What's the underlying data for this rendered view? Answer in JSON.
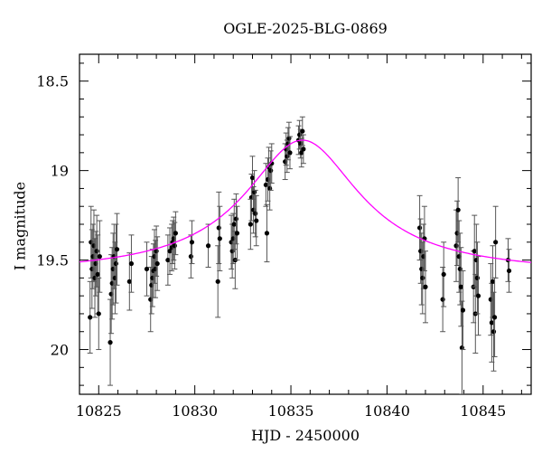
{
  "chart_data": {
    "type": "scatter",
    "title": "OGLE-2025-BLG-0869",
    "xlabel": "HJD - 2450000",
    "ylabel": "I magnitude",
    "xlim": [
      10824,
      10847.5
    ],
    "ylim": [
      20.25,
      18.35
    ],
    "y_inverted": true,
    "xticks": [
      10825,
      10830,
      10835,
      10840,
      10845
    ],
    "yticks": [
      18.5,
      19,
      19.5,
      20
    ],
    "ytick_labels": [
      "18.5",
      "19",
      "19.5",
      "20"
    ],
    "grid": false,
    "colors": {
      "points": "#000000",
      "errorbars": "#555555",
      "model": "#ff00ff"
    },
    "model_curve": {
      "label": "",
      "t0": 10835.6,
      "baseline_mag": 19.58,
      "peak_mag": 18.83,
      "timescale_days": 3.1
    },
    "series": [
      {
        "points": [
          {
            "x": 10824.55,
            "y": 19.82,
            "err": 0.2
          },
          {
            "x": 10824.6,
            "y": 19.4,
            "err": 0.2
          },
          {
            "x": 10824.65,
            "y": 19.55,
            "err": 0.22
          },
          {
            "x": 10824.7,
            "y": 19.48,
            "err": 0.18
          },
          {
            "x": 10824.75,
            "y": 19.42,
            "err": 0.2
          },
          {
            "x": 10824.8,
            "y": 19.6,
            "err": 0.22
          },
          {
            "x": 10824.85,
            "y": 19.52,
            "err": 0.18
          },
          {
            "x": 10824.9,
            "y": 19.45,
            "err": 0.2
          },
          {
            "x": 10824.95,
            "y": 19.58,
            "err": 0.22
          },
          {
            "x": 10825.0,
            "y": 19.8,
            "err": 0.2
          },
          {
            "x": 10825.05,
            "y": 19.48,
            "err": 0.2
          },
          {
            "x": 10825.6,
            "y": 19.96,
            "err": 0.24
          },
          {
            "x": 10825.65,
            "y": 19.69,
            "err": 0.22
          },
          {
            "x": 10825.7,
            "y": 19.63,
            "err": 0.2
          },
          {
            "x": 10825.75,
            "y": 19.55,
            "err": 0.2
          },
          {
            "x": 10825.8,
            "y": 19.48,
            "err": 0.18
          },
          {
            "x": 10825.85,
            "y": 19.6,
            "err": 0.2
          },
          {
            "x": 10825.9,
            "y": 19.52,
            "err": 0.22
          },
          {
            "x": 10825.95,
            "y": 19.44,
            "err": 0.2
          },
          {
            "x": 10826.6,
            "y": 19.62,
            "err": 0.16
          },
          {
            "x": 10826.7,
            "y": 19.52,
            "err": 0.16
          },
          {
            "x": 10827.5,
            "y": 19.55,
            "err": 0.15
          },
          {
            "x": 10827.7,
            "y": 19.72,
            "err": 0.18
          },
          {
            "x": 10827.75,
            "y": 19.64,
            "err": 0.16
          },
          {
            "x": 10827.8,
            "y": 19.6,
            "err": 0.16
          },
          {
            "x": 10827.85,
            "y": 19.56,
            "err": 0.15
          },
          {
            "x": 10827.9,
            "y": 19.48,
            "err": 0.15
          },
          {
            "x": 10827.95,
            "y": 19.55,
            "err": 0.16
          },
          {
            "x": 10828.0,
            "y": 19.45,
            "err": 0.14
          },
          {
            "x": 10828.05,
            "y": 19.52,
            "err": 0.15
          },
          {
            "x": 10828.6,
            "y": 19.5,
            "err": 0.14
          },
          {
            "x": 10828.7,
            "y": 19.45,
            "err": 0.13
          },
          {
            "x": 10828.8,
            "y": 19.43,
            "err": 0.13
          },
          {
            "x": 10828.85,
            "y": 19.4,
            "err": 0.12
          },
          {
            "x": 10828.9,
            "y": 19.38,
            "err": 0.12
          },
          {
            "x": 10828.95,
            "y": 19.42,
            "err": 0.13
          },
          {
            "x": 10829.0,
            "y": 19.35,
            "err": 0.12
          },
          {
            "x": 10829.8,
            "y": 19.48,
            "err": 0.12
          },
          {
            "x": 10829.85,
            "y": 19.4,
            "err": 0.12
          },
          {
            "x": 10830.7,
            "y": 19.42,
            "err": 0.12
          },
          {
            "x": 10831.2,
            "y": 19.62,
            "err": 0.2
          },
          {
            "x": 10831.25,
            "y": 19.32,
            "err": 0.2
          },
          {
            "x": 10831.3,
            "y": 19.38,
            "err": 0.18
          },
          {
            "x": 10831.9,
            "y": 19.4,
            "err": 0.15
          },
          {
            "x": 10831.95,
            "y": 19.45,
            "err": 0.15
          },
          {
            "x": 10832.0,
            "y": 19.38,
            "err": 0.14
          },
          {
            "x": 10832.05,
            "y": 19.3,
            "err": 0.14
          },
          {
            "x": 10832.1,
            "y": 19.5,
            "err": 0.16
          },
          {
            "x": 10832.15,
            "y": 19.27,
            "err": 0.14
          },
          {
            "x": 10832.2,
            "y": 19.35,
            "err": 0.15
          },
          {
            "x": 10832.9,
            "y": 19.3,
            "err": 0.14
          },
          {
            "x": 10832.95,
            "y": 19.15,
            "err": 0.13
          },
          {
            "x": 10833.0,
            "y": 19.04,
            "err": 0.12
          },
          {
            "x": 10833.05,
            "y": 19.22,
            "err": 0.13
          },
          {
            "x": 10833.1,
            "y": 19.12,
            "err": 0.12
          },
          {
            "x": 10833.15,
            "y": 19.24,
            "err": 0.13
          },
          {
            "x": 10833.2,
            "y": 19.28,
            "err": 0.14
          },
          {
            "x": 10833.7,
            "y": 19.08,
            "err": 0.12
          },
          {
            "x": 10833.75,
            "y": 19.35,
            "err": 0.16
          },
          {
            "x": 10833.8,
            "y": 19.05,
            "err": 0.12
          },
          {
            "x": 10833.85,
            "y": 18.98,
            "err": 0.11
          },
          {
            "x": 10833.9,
            "y": 19.1,
            "err": 0.12
          },
          {
            "x": 10833.95,
            "y": 19.0,
            "err": 0.11
          },
          {
            "x": 10834.0,
            "y": 18.96,
            "err": 0.11
          },
          {
            "x": 10834.7,
            "y": 18.95,
            "err": 0.1
          },
          {
            "x": 10834.75,
            "y": 18.88,
            "err": 0.09
          },
          {
            "x": 10834.8,
            "y": 18.92,
            "err": 0.09
          },
          {
            "x": 10834.85,
            "y": 18.85,
            "err": 0.09
          },
          {
            "x": 10834.9,
            "y": 18.82,
            "err": 0.09
          },
          {
            "x": 10834.95,
            "y": 18.9,
            "err": 0.09
          },
          {
            "x": 10835.4,
            "y": 18.83,
            "err": 0.08
          },
          {
            "x": 10835.45,
            "y": 18.8,
            "err": 0.08
          },
          {
            "x": 10835.5,
            "y": 18.85,
            "err": 0.08
          },
          {
            "x": 10835.55,
            "y": 18.9,
            "err": 0.08
          },
          {
            "x": 10835.6,
            "y": 18.78,
            "err": 0.08
          },
          {
            "x": 10835.65,
            "y": 18.88,
            "err": 0.08
          },
          {
            "x": 10841.7,
            "y": 19.32,
            "err": 0.18
          },
          {
            "x": 10841.75,
            "y": 19.45,
            "err": 0.18
          },
          {
            "x": 10841.8,
            "y": 19.55,
            "err": 0.2
          },
          {
            "x": 10841.85,
            "y": 19.6,
            "err": 0.2
          },
          {
            "x": 10841.9,
            "y": 19.48,
            "err": 0.18
          },
          {
            "x": 10841.95,
            "y": 19.38,
            "err": 0.18
          },
          {
            "x": 10842.0,
            "y": 19.65,
            "err": 0.2
          },
          {
            "x": 10842.9,
            "y": 19.72,
            "err": 0.18
          },
          {
            "x": 10842.95,
            "y": 19.58,
            "err": 0.18
          },
          {
            "x": 10843.6,
            "y": 19.42,
            "err": 0.2
          },
          {
            "x": 10843.65,
            "y": 19.35,
            "err": 0.18
          },
          {
            "x": 10843.7,
            "y": 19.22,
            "err": 0.18
          },
          {
            "x": 10843.75,
            "y": 19.48,
            "err": 0.2
          },
          {
            "x": 10843.8,
            "y": 19.55,
            "err": 0.2
          },
          {
            "x": 10843.85,
            "y": 19.65,
            "err": 0.22
          },
          {
            "x": 10843.9,
            "y": 19.99,
            "err": 0.26
          },
          {
            "x": 10843.95,
            "y": 19.78,
            "err": 0.22
          },
          {
            "x": 10844.5,
            "y": 19.65,
            "err": 0.2
          },
          {
            "x": 10844.55,
            "y": 19.45,
            "err": 0.2
          },
          {
            "x": 10844.6,
            "y": 19.8,
            "err": 0.22
          },
          {
            "x": 10844.65,
            "y": 19.5,
            "err": 0.2
          },
          {
            "x": 10844.7,
            "y": 19.6,
            "err": 0.2
          },
          {
            "x": 10844.75,
            "y": 19.7,
            "err": 0.22
          },
          {
            "x": 10845.4,
            "y": 19.72,
            "err": 0.2
          },
          {
            "x": 10845.45,
            "y": 19.85,
            "err": 0.22
          },
          {
            "x": 10845.5,
            "y": 19.62,
            "err": 0.2
          },
          {
            "x": 10845.55,
            "y": 19.9,
            "err": 0.22
          },
          {
            "x": 10845.6,
            "y": 19.82,
            "err": 0.22
          },
          {
            "x": 10845.65,
            "y": 19.4,
            "err": 0.2
          },
          {
            "x": 10846.3,
            "y": 19.5,
            "err": 0.12
          },
          {
            "x": 10846.35,
            "y": 19.56,
            "err": 0.12
          }
        ]
      }
    ]
  }
}
